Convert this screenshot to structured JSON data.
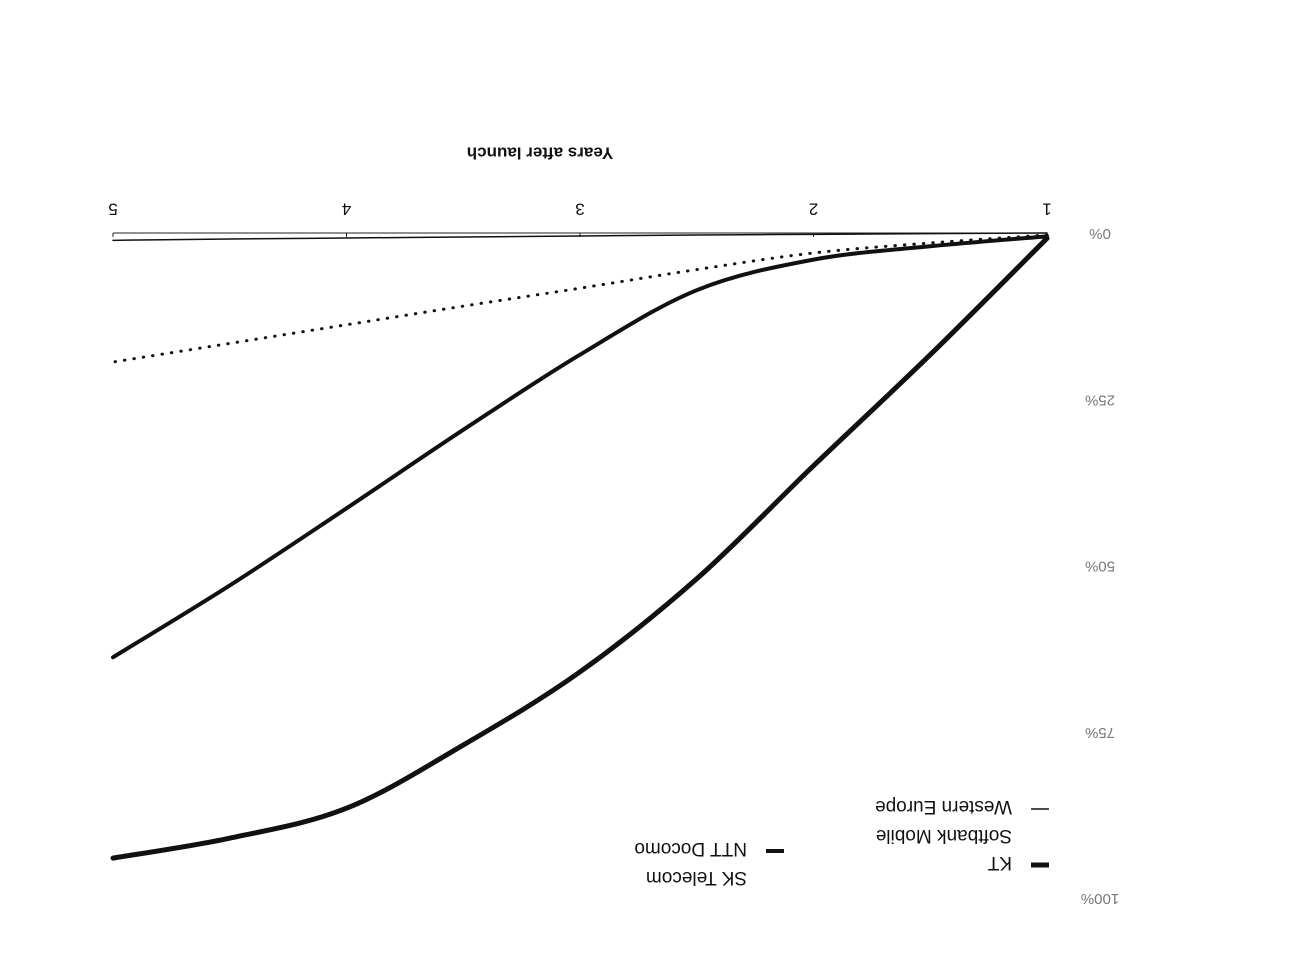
{
  "chart_data": {
    "type": "line",
    "x_label": "Years after launch",
    "x": [
      1,
      1.5,
      2,
      2.5,
      3,
      3.5,
      4,
      4.5,
      5
    ],
    "xlim": [
      1,
      5
    ],
    "xticks": [
      1,
      2,
      3,
      4,
      5
    ],
    "ylim": [
      0,
      100
    ],
    "yticks": [
      {
        "value": 0,
        "label": "0%"
      },
      {
        "value": 25,
        "label": "25%"
      },
      {
        "value": 50,
        "label": "50%"
      },
      {
        "value": 75,
        "label": "75%"
      },
      {
        "value": 100,
        "label": "100%"
      }
    ],
    "series": [
      {
        "name": "KT",
        "color": "#111111",
        "width": 5,
        "dash": "none",
        "values": [
          0.8,
          18.3,
          35,
          52,
          66,
          77,
          86.5,
          91,
          94
        ]
      },
      {
        "name": "Softbank Mobile",
        "color": "#111111",
        "width": 3,
        "dash": "dotted",
        "values": [
          0.3,
          1.5,
          3,
          5.5,
          8.3,
          11,
          13.8,
          16.6,
          19.4
        ]
      },
      {
        "name": "Western Europe",
        "color": "#111111",
        "width": 1.5,
        "dash": "none",
        "values": [
          0,
          0.1,
          0.2,
          0.3,
          0.45,
          0.6,
          0.75,
          0.9,
          1.1
        ]
      },
      {
        "name": "SK Telecom",
        "color": "#111111",
        "width": 3,
        "dash": "none",
        "values": [
          null,
          null,
          null,
          null,
          null,
          null,
          null,
          null,
          null
        ]
      },
      {
        "name": "NTT Docomo",
        "color": "#111111",
        "width": 4,
        "dash": "none",
        "values": [
          0.5,
          2,
          4,
          8.6,
          18.3,
          29.6,
          41.4,
          53,
          63.8
        ]
      }
    ]
  }
}
